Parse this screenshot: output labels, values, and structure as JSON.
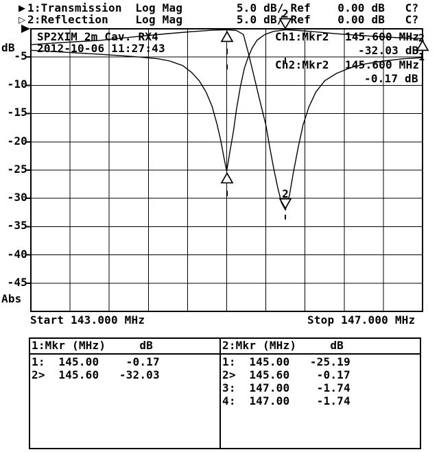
{
  "header": {
    "line1_bullet": "▶",
    "line1": "1:Transmission  Log Mag        5.0 dB/ Ref    0.00 dB   C?",
    "line2_bullet": "▷",
    "line2": "2:Reflection    Log Mag        5.0 dB/ Ref    0.00 dB   C?"
  },
  "annotations": {
    "device": "SP2XIM 2m Cav. RX4",
    "timestamp": "2012-10-06 11:27:43",
    "ch1_label": "Ch1:Mkr2",
    "ch1_freq": "145.600 MHz",
    "ch1_value": "-32.03 dB",
    "ch2_label": "Ch2:Mkr2",
    "ch2_freq": "145.600 MHz",
    "ch2_value": "-0.17 dB"
  },
  "axis": {
    "unit": "dB",
    "bottom_label": "Abs",
    "ticks": [
      -5,
      -10,
      -15,
      -20,
      -25,
      -30,
      -35,
      -40,
      -45
    ],
    "start": "Start 143.000 MHz",
    "stop": "Stop 147.000 MHz"
  },
  "tables": {
    "left": {
      "header": "1:Mkr (MHz)     dB",
      "rows": [
        "1:  145.00    -0.17",
        "2>  145.60   -32.03"
      ]
    },
    "right": {
      "header": "2:Mkr (MHz)     dB",
      "rows": [
        "1:  145.00   -25.19",
        "2>  145.60    -0.17",
        "3:  147.00    -1.74",
        "4:  147.00    -1.74"
      ]
    }
  },
  "chart_data": {
    "type": "line",
    "x_unit": "MHz",
    "y_unit": "dB",
    "xlim": [
      143,
      147
    ],
    "ylim": [
      -50,
      0
    ],
    "x_divisions": 10,
    "y_divisions": 10,
    "grid": true,
    "start_frequency_mhz": 143.0,
    "stop_frequency_mhz": 147.0,
    "scale_db_per_div": 5.0,
    "reference_db": 0.0,
    "series": [
      {
        "name": "Transmission",
        "points": [
          [
            143.0,
            -2.8
          ],
          [
            143.3,
            -2.45
          ],
          [
            143.7,
            -2.05
          ],
          [
            144.1,
            -1.35
          ],
          [
            144.4,
            -0.85
          ],
          [
            144.65,
            -0.5
          ],
          [
            144.85,
            -0.25
          ],
          [
            145.0,
            -0.17
          ],
          [
            145.1,
            -0.3
          ],
          [
            145.17,
            -1.0
          ],
          [
            145.22,
            -4.2
          ],
          [
            145.28,
            -8.5
          ],
          [
            145.34,
            -12.8
          ],
          [
            145.4,
            -17.0
          ],
          [
            145.44,
            -21.0
          ],
          [
            145.48,
            -24.7
          ],
          [
            145.52,
            -28.0
          ],
          [
            145.56,
            -30.8
          ],
          [
            145.6,
            -32.03
          ],
          [
            145.64,
            -29.5
          ],
          [
            145.68,
            -25.5
          ],
          [
            145.73,
            -21.0
          ],
          [
            145.78,
            -17.0
          ],
          [
            145.84,
            -13.8
          ],
          [
            145.91,
            -11.2
          ],
          [
            146.0,
            -9.2
          ],
          [
            146.12,
            -7.9
          ],
          [
            146.26,
            -6.9
          ],
          [
            146.42,
            -6.2
          ],
          [
            146.6,
            -5.7
          ],
          [
            146.8,
            -5.3
          ],
          [
            147.0,
            -5.1
          ]
        ]
      },
      {
        "name": "Reflection",
        "points": [
          [
            143.0,
            -3.8
          ],
          [
            143.4,
            -4.2
          ],
          [
            143.7,
            -4.5
          ],
          [
            144.05,
            -4.9
          ],
          [
            144.3,
            -5.3
          ],
          [
            144.42,
            -5.7
          ],
          [
            144.55,
            -6.5
          ],
          [
            144.64,
            -7.7
          ],
          [
            144.72,
            -9.2
          ],
          [
            144.79,
            -11.2
          ],
          [
            144.85,
            -13.7
          ],
          [
            144.9,
            -16.8
          ],
          [
            144.94,
            -19.8
          ],
          [
            144.97,
            -22.6
          ],
          [
            145.0,
            -25.19
          ],
          [
            145.03,
            -22.0
          ],
          [
            145.07,
            -18.0
          ],
          [
            145.1,
            -14.2
          ],
          [
            145.14,
            -10.2
          ],
          [
            145.18,
            -7.0
          ],
          [
            145.22,
            -5.0
          ],
          [
            145.26,
            -3.4
          ],
          [
            145.31,
            -2.0
          ],
          [
            145.39,
            -1.0
          ],
          [
            145.48,
            -0.45
          ],
          [
            145.6,
            -0.17
          ],
          [
            145.74,
            -0.3
          ],
          [
            145.88,
            -0.5
          ],
          [
            146.02,
            -0.72
          ],
          [
            146.18,
            -0.95
          ],
          [
            146.35,
            -1.15
          ],
          [
            146.55,
            -1.38
          ],
          [
            146.76,
            -1.58
          ],
          [
            147.0,
            -1.74
          ]
        ]
      }
    ],
    "markers": [
      {
        "trace": "Transmission",
        "n": "1",
        "f": 145.0,
        "dB": -0.17,
        "style": "below"
      },
      {
        "trace": "Transmission",
        "n": "2",
        "f": 145.6,
        "dB": -32.03,
        "style": "above"
      },
      {
        "trace": "Reflection",
        "n": "1",
        "f": 145.0,
        "dB": -25.19,
        "style": "below"
      },
      {
        "trace": "Reflection",
        "n": "2",
        "f": 145.6,
        "dB": -0.17,
        "style": "above"
      },
      {
        "trace": "Reflection",
        "n": "",
        "f": 147.0,
        "dB": -1.74,
        "style": "below"
      }
    ],
    "trace_end_labels": [
      {
        "label": "2",
        "f": 147.0,
        "dB": -1.74
      },
      {
        "label": "1",
        "f": 147.0,
        "dB": -5.1
      }
    ],
    "ink_color": "#000000",
    "background_color": "#ffffff"
  }
}
